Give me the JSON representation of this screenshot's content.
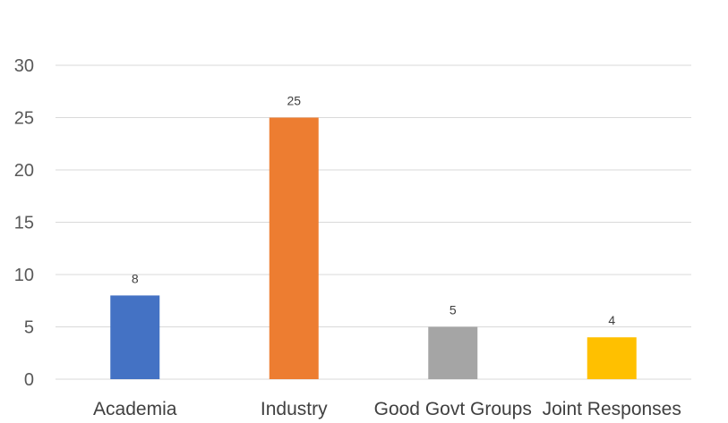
{
  "chart_data": {
    "type": "bar",
    "categories": [
      "Academia",
      "Industry",
      "Good Govt Groups",
      "Joint Responses"
    ],
    "values": [
      8,
      25,
      5,
      4
    ],
    "colors": [
      "#4472c4",
      "#ed7d31",
      "#a5a5a5",
      "#ffc000"
    ],
    "title": "",
    "xlabel": "",
    "ylabel": "",
    "ylim": [
      0,
      30
    ],
    "yticks": [
      0,
      5,
      10,
      15,
      20,
      25,
      30
    ],
    "data_labels": [
      "8",
      "25",
      "5",
      "4"
    ],
    "grid": true,
    "gridline_color": "#d9d9d9",
    "legend": "none"
  }
}
